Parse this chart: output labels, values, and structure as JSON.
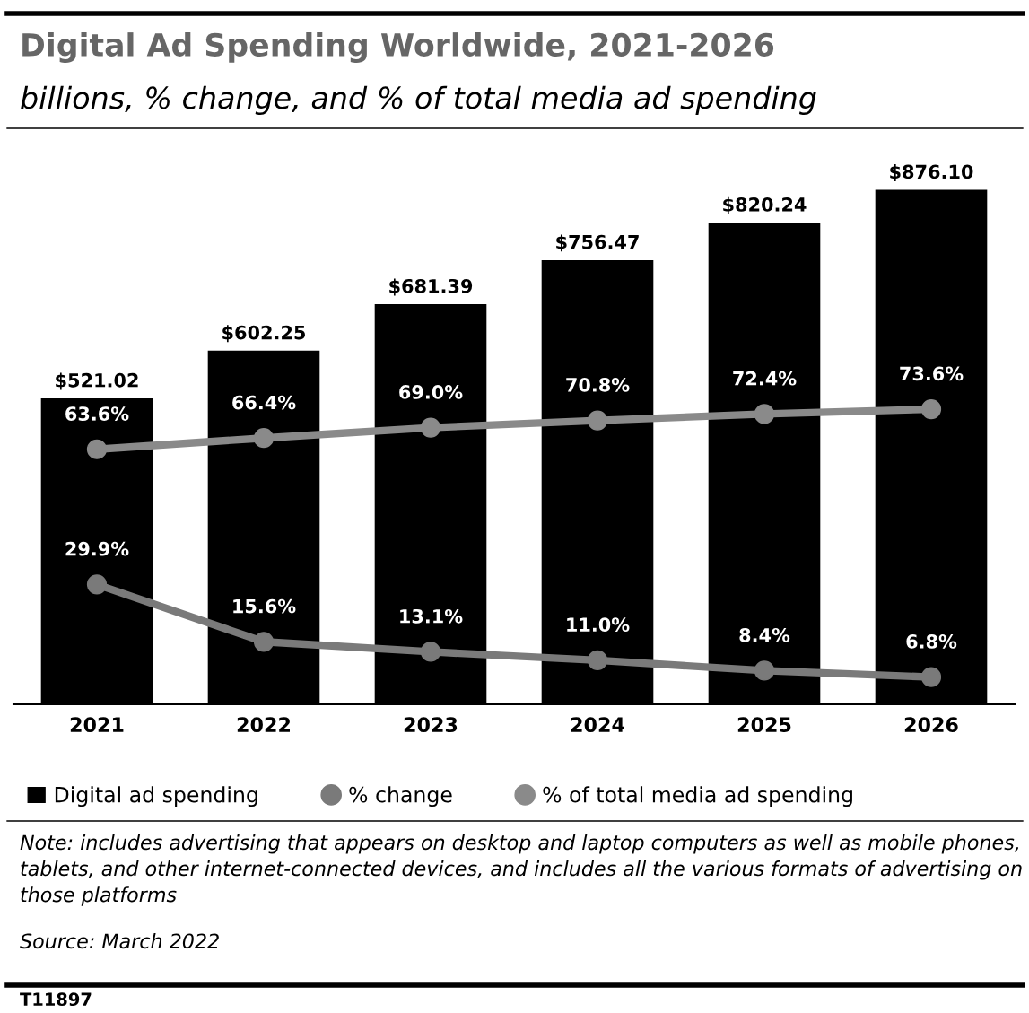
{
  "chart_data": {
    "type": "bar",
    "title": "Digital Ad Spending Worldwide, 2021-2026",
    "subtitle": "billions, % change, and % of total media ad spending",
    "categories": [
      "2021",
      "2022",
      "2023",
      "2024",
      "2025",
      "2026"
    ],
    "series": [
      {
        "name": "Digital ad spending",
        "color": "#000000",
        "values": [
          521.02,
          602.25,
          681.39,
          756.47,
          820.24,
          876.1
        ],
        "value_labels": [
          "$521.02",
          "$602.25",
          "$681.39",
          "$756.47",
          "$820.24",
          "$876.10"
        ]
      },
      {
        "name": "% change",
        "type": "line",
        "axis": "y2",
        "color": "#7a7a7a",
        "values": [
          29.9,
          15.6,
          13.1,
          11.0,
          8.4,
          6.8
        ],
        "value_labels": [
          "29.9%",
          "15.6%",
          "13.1%",
          "11.0%",
          "8.4%",
          "6.8%"
        ]
      },
      {
        "name": "% of total media ad spending",
        "type": "line",
        "axis": "y2",
        "color": "#8a8a8a",
        "values": [
          63.6,
          66.4,
          69.0,
          70.8,
          72.4,
          73.6
        ],
        "value_labels": [
          "63.6%",
          "66.4%",
          "69.0%",
          "70.8%",
          "72.4%",
          "73.6%"
        ]
      }
    ],
    "tick_labels": "x",
    "marker": "circle",
    "line_style": "solid",
    "grid": false,
    "legend": "bottom",
    "annotations": [
      "Note: includes advertising that appears on desktop and laptop computers as well as mobile phones, tablets, and other internet-connected devices, and includes all the various formats of advertising on those platforms",
      "Source: March 2022",
      "T11897"
    ]
  }
}
